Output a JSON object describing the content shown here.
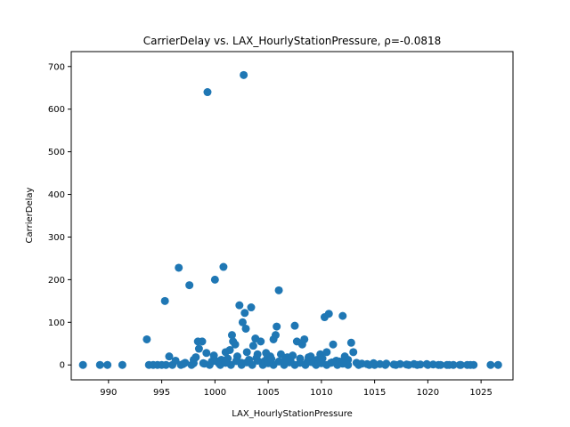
{
  "chart_data": {
    "type": "scatter",
    "title": "CarrierDelay vs. LAX_HourlyStationPressure, ρ=-0.0818",
    "xlabel": "LAX_HourlyStationPressure",
    "ylabel": "CarrierDelay",
    "xlim": [
      986.5,
      1028.0
    ],
    "ylim": [
      -35,
      735
    ],
    "xticks": [
      990,
      995,
      1000,
      1005,
      1010,
      1015,
      1020,
      1025
    ],
    "yticks": [
      0,
      100,
      200,
      300,
      400,
      500,
      600,
      700
    ],
    "grid": false,
    "legend": "none",
    "marker_color": "#1f77b4",
    "points": [
      [
        987.6,
        0
      ],
      [
        989.2,
        0
      ],
      [
        989.9,
        0
      ],
      [
        991.3,
        0
      ],
      [
        993.6,
        60
      ],
      [
        993.8,
        0
      ],
      [
        994.2,
        0
      ],
      [
        994.6,
        0
      ],
      [
        995.0,
        0
      ],
      [
        995.3,
        150
      ],
      [
        995.4,
        0
      ],
      [
        995.7,
        20
      ],
      [
        996.0,
        0
      ],
      [
        996.3,
        10
      ],
      [
        996.6,
        228
      ],
      [
        996.8,
        0
      ],
      [
        997.2,
        5
      ],
      [
        997.6,
        187
      ],
      [
        997.8,
        0
      ],
      [
        998.0,
        12
      ],
      [
        998.2,
        18
      ],
      [
        998.4,
        55
      ],
      [
        998.5,
        38
      ],
      [
        998.8,
        55
      ],
      [
        998.9,
        4
      ],
      [
        999.2,
        28
      ],
      [
        999.3,
        640
      ],
      [
        999.5,
        0
      ],
      [
        999.7,
        8
      ],
      [
        999.9,
        22
      ],
      [
        1000.0,
        200
      ],
      [
        1000.2,
        8
      ],
      [
        1000.4,
        3
      ],
      [
        1000.6,
        12
      ],
      [
        1000.8,
        230
      ],
      [
        1001.0,
        30
      ],
      [
        1001.2,
        15
      ],
      [
        1001.4,
        35
      ],
      [
        1001.6,
        70
      ],
      [
        1001.7,
        55
      ],
      [
        1001.9,
        48
      ],
      [
        1002.1,
        20
      ],
      [
        1002.3,
        140
      ],
      [
        1002.5,
        5
      ],
      [
        1002.6,
        100
      ],
      [
        1002.7,
        680
      ],
      [
        1002.8,
        122
      ],
      [
        1002.9,
        85
      ],
      [
        1003.0,
        30
      ],
      [
        1003.2,
        12
      ],
      [
        1003.4,
        135
      ],
      [
        1003.6,
        45
      ],
      [
        1003.8,
        62
      ],
      [
        1004.0,
        25
      ],
      [
        1004.3,
        55
      ],
      [
        1004.6,
        8
      ],
      [
        1004.9,
        15
      ],
      [
        1005.2,
        20
      ],
      [
        1005.5,
        60
      ],
      [
        1005.7,
        70
      ],
      [
        1005.8,
        90
      ],
      [
        1006.0,
        175
      ],
      [
        1006.2,
        25
      ],
      [
        1006.5,
        5
      ],
      [
        1006.8,
        18
      ],
      [
        1007.1,
        10
      ],
      [
        1007.3,
        22
      ],
      [
        1007.5,
        92
      ],
      [
        1007.7,
        55
      ],
      [
        1008.0,
        15
      ],
      [
        1008.2,
        48
      ],
      [
        1008.4,
        60
      ],
      [
        1008.7,
        8
      ],
      [
        1009.0,
        20
      ],
      [
        1009.3,
        5
      ],
      [
        1009.6,
        12
      ],
      [
        1009.9,
        25
      ],
      [
        1010.1,
        15
      ],
      [
        1010.3,
        112
      ],
      [
        1010.5,
        30
      ],
      [
        1010.7,
        120
      ],
      [
        1010.9,
        5
      ],
      [
        1011.1,
        48
      ],
      [
        1011.4,
        10
      ],
      [
        1011.7,
        8
      ],
      [
        1012.0,
        115
      ],
      [
        1012.2,
        20
      ],
      [
        1012.5,
        12
      ],
      [
        1012.8,
        52
      ],
      [
        1013.0,
        30
      ],
      [
        1013.3,
        5
      ],
      [
        1013.8,
        3
      ],
      [
        1014.3,
        2
      ],
      [
        1014.9,
        4
      ],
      [
        1015.5,
        2
      ],
      [
        1016.1,
        3
      ],
      [
        1016.8,
        1
      ],
      [
        1017.4,
        2
      ],
      [
        1018.0,
        1
      ],
      [
        1018.7,
        2
      ],
      [
        1019.3,
        1
      ],
      [
        1019.9,
        2
      ],
      [
        1020.5,
        1
      ],
      [
        1021.2,
        0
      ],
      [
        1021.8,
        0
      ],
      [
        1022.4,
        0
      ],
      [
        1023.1,
        0
      ],
      [
        1023.7,
        0
      ],
      [
        1024.3,
        0
      ],
      [
        1025.9,
        0
      ],
      [
        1026.6,
        0
      ],
      [
        1000.5,
        0
      ],
      [
        1001.5,
        0
      ],
      [
        1002.5,
        0
      ],
      [
        1003.5,
        0
      ],
      [
        1004.5,
        0
      ],
      [
        1005.5,
        0
      ],
      [
        1006.5,
        0
      ],
      [
        1007.5,
        0
      ],
      [
        1008.5,
        0
      ],
      [
        1009.5,
        0
      ],
      [
        1010.5,
        0
      ],
      [
        1011.5,
        0
      ],
      [
        1012.5,
        0
      ],
      [
        1013.5,
        0
      ],
      [
        1014.5,
        0
      ],
      [
        1015.0,
        0
      ],
      [
        1016.0,
        0
      ],
      [
        1017.0,
        0
      ],
      [
        1018.2,
        0
      ],
      [
        1019.0,
        0
      ],
      [
        1020.0,
        0
      ],
      [
        1021.0,
        0
      ],
      [
        1022.0,
        0
      ],
      [
        1023.0,
        0
      ],
      [
        1024.0,
        0
      ],
      [
        1003.0,
        6
      ],
      [
        1004.0,
        10
      ],
      [
        1005.0,
        4
      ],
      [
        1006.0,
        8
      ],
      [
        1007.0,
        6
      ],
      [
        1008.0,
        5
      ],
      [
        1009.0,
        7
      ],
      [
        1010.0,
        4
      ],
      [
        1011.0,
        6
      ],
      [
        1012.0,
        3
      ],
      [
        1001.0,
        5
      ],
      [
        1002.0,
        9
      ],
      [
        999.0,
        3
      ],
      [
        998.0,
        4
      ],
      [
        997.0,
        2
      ],
      [
        1004.8,
        28
      ],
      [
        1006.6,
        12
      ],
      [
        1008.8,
        18
      ],
      [
        1003.9,
        16
      ],
      [
        1005.3,
        14
      ]
    ]
  }
}
